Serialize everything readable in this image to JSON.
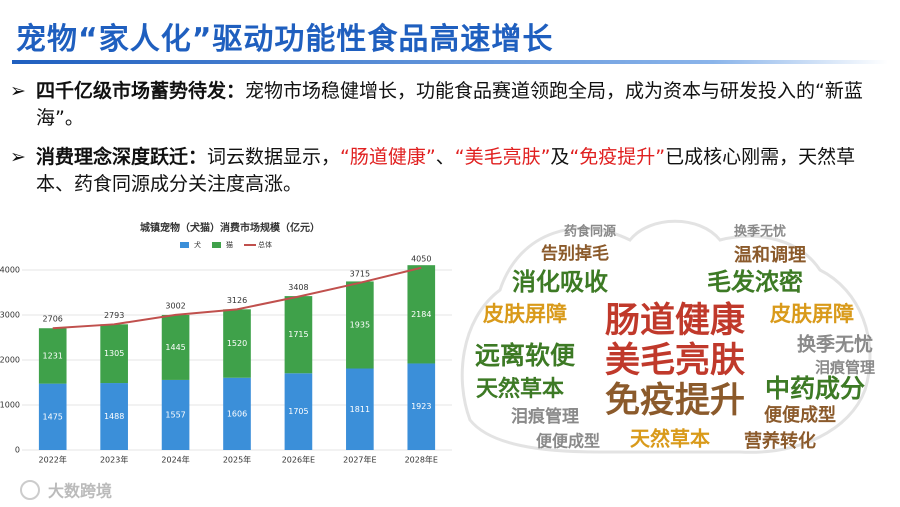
{
  "header": {
    "title": "宠物“家人化”驱动功能性食品高速增长"
  },
  "bullets": [
    {
      "lead": "四千亿级市场蓄势待发：",
      "segments": [
        {
          "text": "宠物市场稳健增长，功能食品赛道领跑全局，成为资本与研发投入的“新蓝海”。",
          "highlight": false
        }
      ]
    },
    {
      "lead": "消费理念深度跃迁：",
      "segments": [
        {
          "text": "词云数据显示，",
          "highlight": false
        },
        {
          "text": "“肠道健康”",
          "highlight": true
        },
        {
          "text": "、",
          "highlight": false
        },
        {
          "text": "“美毛亮肤”",
          "highlight": true
        },
        {
          "text": "及",
          "highlight": false
        },
        {
          "text": "“免疫提升”",
          "highlight": true
        },
        {
          "text": "已成核心刚需，天然草本、药食同源成分关注度高涨。",
          "highlight": false
        }
      ]
    }
  ],
  "chart_data": {
    "type": "stacked-bar-line",
    "title": "城镇宠物（犬猫）消费市场规模（亿元）",
    "categories": [
      "2022年",
      "2023年",
      "2024年",
      "2025年",
      "2026年E",
      "2027年E",
      "2028年E"
    ],
    "series": [
      {
        "name": "犬",
        "color": "#3b8fd9",
        "values": [
          1475,
          1488,
          1557,
          1606,
          1705,
          1811,
          1923
        ]
      },
      {
        "name": "猫",
        "color": "#3fa14a",
        "values": [
          1231,
          1305,
          1445,
          1520,
          1715,
          1935,
          2184
        ]
      },
      {
        "name": "总体",
        "color": "#c0504d",
        "values": [
          2706,
          2793,
          3002,
          3126,
          3408,
          3715,
          4050
        ],
        "kind": "line"
      }
    ],
    "ylim": [
      0,
      4200
    ],
    "yticks": [
      0,
      1000,
      2000,
      3000,
      4000
    ],
    "grid": true
  },
  "wordcloud": {
    "words": [
      {
        "text": "药食同源",
        "color": "#8a8a8a"
      },
      {
        "text": "换季无忧",
        "color": "#8a8a8a"
      },
      {
        "text": "告别掉毛",
        "color": "#8b5a2b"
      },
      {
        "text": "温和调理",
        "color": "#8b5a2b"
      },
      {
        "text": "消化吸收",
        "color": "#3d7a25"
      },
      {
        "text": "毛发浓密",
        "color": "#3d7a25"
      },
      {
        "text": "皮肤屏障",
        "color": "#d99a1a"
      },
      {
        "text": "肠道健康",
        "color": "#c0392b"
      },
      {
        "text": "皮肤屏障",
        "color": "#d99a1a"
      },
      {
        "text": "换季无忧",
        "color": "#8a8a8a"
      },
      {
        "text": "远离软便",
        "color": "#3d7a25"
      },
      {
        "text": "美毛亮肤",
        "color": "#c0392b"
      },
      {
        "text": "泪痕管理",
        "color": "#8a8a8a"
      },
      {
        "text": "天然草本",
        "color": "#3d7a25"
      },
      {
        "text": "免疫提升",
        "color": "#8b5a2b"
      },
      {
        "text": "中药成分",
        "color": "#3d7a25"
      },
      {
        "text": "泪痕管理",
        "color": "#8a8a8a"
      },
      {
        "text": "便便成型",
        "color": "#8b5a2b"
      },
      {
        "text": "便便成型",
        "color": "#8a8a8a"
      },
      {
        "text": "天然草本",
        "color": "#d99a1a"
      },
      {
        "text": "营养转化",
        "color": "#8b5a2b"
      }
    ]
  },
  "footer": {
    "logo": "大数跨境"
  }
}
